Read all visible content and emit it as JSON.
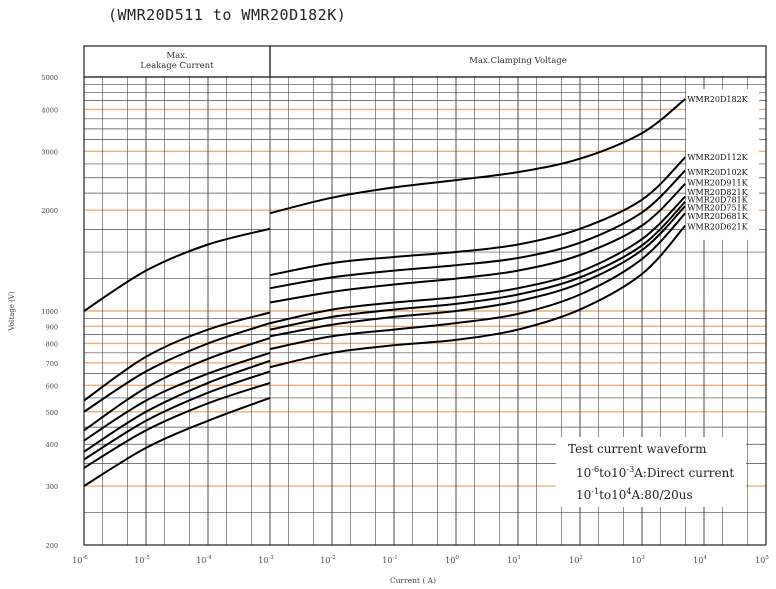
{
  "chart_data": {
    "type": "line",
    "title": "(WMR20D511 to WMR20D182K)",
    "xlabel": "Current ( A)",
    "ylabel": "Voltage (V)",
    "x_scale": "log",
    "y_scale": "log",
    "xlim": [
      1e-06,
      100000.0
    ],
    "ylim": [
      200,
      5000
    ],
    "grid": true,
    "x_ticks": [
      {
        "value": 1e-06,
        "base": "10",
        "exp": "-6"
      },
      {
        "value": 1e-05,
        "base": "10",
        "exp": "-5"
      },
      {
        "value": 0.0001,
        "base": "10",
        "exp": "-4"
      },
      {
        "value": 0.001,
        "base": "10",
        "exp": "-3"
      },
      {
        "value": 0.01,
        "base": "10",
        "exp": "-2"
      },
      {
        "value": 0.1,
        "base": "10",
        "exp": "-1"
      },
      {
        "value": 1,
        "base": "10",
        "exp": "0"
      },
      {
        "value": 10,
        "base": "10",
        "exp": "1"
      },
      {
        "value": 100,
        "base": "10",
        "exp": "2"
      },
      {
        "value": 1000,
        "base": "10",
        "exp": "3"
      },
      {
        "value": 10000,
        "base": "10",
        "exp": "4"
      },
      {
        "value": 100000,
        "base": "10",
        "exp": "5"
      }
    ],
    "y_ticks": [
      200,
      300,
      400,
      500,
      600,
      700,
      800,
      900,
      1000,
      2000,
      3000,
      4000,
      5000
    ],
    "regions": [
      {
        "label_line1": "Max.",
        "label_line2": "Leakage Current",
        "x_from": 1e-06,
        "x_to": 0.001
      },
      {
        "label_line1": "Max.Clamping Voltage",
        "label_line2": "",
        "x_from": 0.001,
        "x_to": 100000.0
      }
    ],
    "orange_gridlines": [
      300,
      500,
      600,
      700,
      800,
      900,
      1000,
      2000,
      3000,
      4000
    ],
    "series": [
      {
        "name": "WMR20D182K",
        "leakage_x": [
          1e-06,
          1e-05,
          0.0001,
          0.001
        ],
        "leakage_y": [
          1000,
          1320,
          1580,
          1760
        ],
        "clamp_x": [
          0.001,
          0.01,
          0.1,
          1,
          10,
          100,
          1000,
          5000
        ],
        "clamp_y": [
          1960,
          2180,
          2340,
          2460,
          2600,
          2850,
          3400,
          4300
        ]
      },
      {
        "name": "WMR20D112K",
        "leakage_x": [
          1e-06,
          1e-05,
          0.0001,
          0.001
        ],
        "leakage_y": [
          540,
          730,
          880,
          990
        ],
        "clamp_x": [
          0.001,
          0.01,
          0.1,
          1,
          10,
          100,
          1000,
          5000
        ],
        "clamp_y": [
          1280,
          1390,
          1450,
          1500,
          1580,
          1760,
          2150,
          2880
        ]
      },
      {
        "name": "WMR20D102K",
        "leakage_x": [
          1e-06,
          1e-05,
          0.0001,
          0.001
        ],
        "leakage_y": [
          500,
          660,
          800,
          920
        ],
        "clamp_x": [
          0.001,
          0.01,
          0.1,
          1,
          10,
          100,
          1000,
          5000
        ],
        "clamp_y": [
          1170,
          1260,
          1320,
          1370,
          1440,
          1600,
          1970,
          2630
        ]
      },
      {
        "name": "WMR20D911K",
        "leakage_x": [
          1e-06,
          1e-05,
          0.0001,
          0.001
        ],
        "leakage_y": [
          440,
          590,
          720,
          830
        ],
        "clamp_x": [
          0.001,
          0.01,
          0.1,
          1,
          10,
          100,
          1000,
          5000
        ],
        "clamp_y": [
          1060,
          1140,
          1200,
          1250,
          1320,
          1470,
          1800,
          2400
        ]
      },
      {
        "name": "WMR20D821K",
        "leakage_x": [
          1e-06,
          1e-05,
          0.0001,
          0.001
        ],
        "leakage_y": [
          410,
          540,
          650,
          750
        ],
        "clamp_x": [
          0.001,
          0.01,
          0.1,
          1,
          10,
          100,
          1000,
          5000
        ],
        "clamp_y": [
          920,
          1010,
          1060,
          1100,
          1170,
          1310,
          1640,
          2200
        ]
      },
      {
        "name": "WMR20D781K",
        "leakage_x": [
          1e-06,
          1e-05,
          0.0001,
          0.001
        ],
        "leakage_y": [
          380,
          500,
          610,
          710
        ],
        "clamp_x": [
          0.001,
          0.01,
          0.1,
          1,
          10,
          100,
          1000,
          5000
        ],
        "clamp_y": [
          880,
          960,
          1010,
          1050,
          1120,
          1260,
          1570,
          2120
        ]
      },
      {
        "name": "WMR20D751K",
        "leakage_x": [
          1e-06,
          1e-05,
          0.0001,
          0.001
        ],
        "leakage_y": [
          360,
          470,
          570,
          660
        ],
        "clamp_x": [
          0.001,
          0.01,
          0.1,
          1,
          10,
          100,
          1000,
          5000
        ],
        "clamp_y": [
          840,
          910,
          960,
          1000,
          1070,
          1210,
          1520,
          2060
        ]
      },
      {
        "name": "WMR20D681K",
        "leakage_x": [
          1e-06,
          1e-05,
          0.0001,
          0.001
        ],
        "leakage_y": [
          340,
          440,
          530,
          610
        ],
        "clamp_x": [
          0.001,
          0.01,
          0.1,
          1,
          10,
          100,
          1000,
          5000
        ],
        "clamp_y": [
          770,
          840,
          880,
          920,
          980,
          1120,
          1430,
          1960
        ]
      },
      {
        "name": "WMR20D621K",
        "leakage_x": [
          1e-06,
          1e-05,
          0.0001,
          0.001
        ],
        "leakage_y": [
          300,
          390,
          470,
          550
        ],
        "clamp_x": [
          0.001,
          0.01,
          0.1,
          1,
          10,
          100,
          1000,
          5000
        ],
        "clamp_y": [
          680,
          750,
          790,
          820,
          880,
          1010,
          1290,
          1800
        ]
      }
    ],
    "legend_labels": [
      "WMR20D182K",
      "WMR20D112K",
      "WMR20D102K",
      "WMR20D911K",
      "WMR20D821K",
      "WMR20D781K",
      "WMR20D751K",
      "WMR20D681K",
      "WMR20D621K"
    ],
    "annotation": {
      "title": "Test current waveform",
      "line1_base1": "10",
      "line1_exp1": "-6",
      "line1_mid": "to10",
      "line1_exp2": "-3",
      "line1_tail": "A:Direct current",
      "line2_base1": "10",
      "line2_exp1": "-1",
      "line2_mid": "to10",
      "line2_exp2": "4",
      "line2_tail": "A:80/20us"
    },
    "colors": {
      "axis": "#222222",
      "grid": "#4a4a4a",
      "grid_orange": "#e8b27d",
      "series": "#000000"
    }
  }
}
